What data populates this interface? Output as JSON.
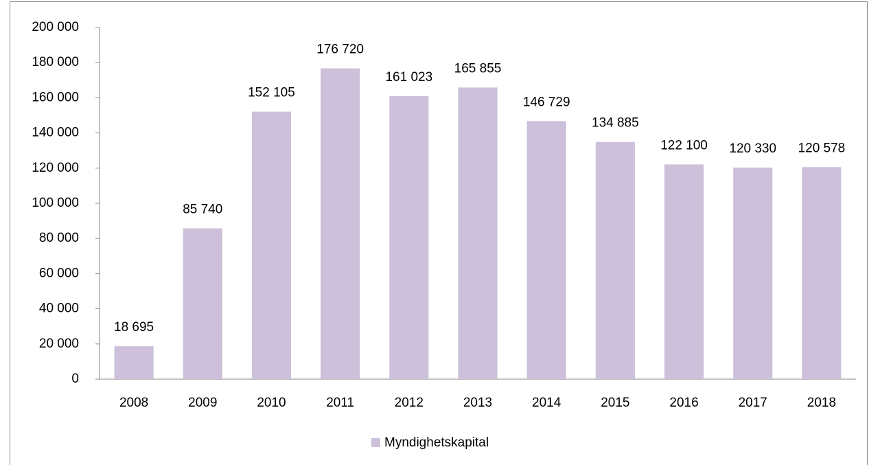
{
  "chart_data": {
    "type": "bar",
    "categories": [
      "2008",
      "2009",
      "2010",
      "2011",
      "2012",
      "2013",
      "2014",
      "2015",
      "2016",
      "2017",
      "2018"
    ],
    "series": [
      {
        "name": "Myndighetskapital",
        "color": "#ccc0da",
        "values": [
          18695,
          85740,
          152105,
          176720,
          161023,
          165855,
          146729,
          134885,
          122100,
          120330,
          120578
        ],
        "value_labels": [
          "18 695",
          "85 740",
          "152 105",
          "176 720",
          "161 023",
          "165 855",
          "146 729",
          "134 885",
          "122 100",
          "120 330",
          "120 578"
        ]
      }
    ],
    "ylim": [
      0,
      200000
    ],
    "yticks": [
      0,
      {
        "value": 20000,
        "label": "20 000"
      },
      {
        "value": 40000,
        "label": "40 000"
      },
      {
        "value": 60000,
        "label": "60 000"
      },
      {
        "value": 80000,
        "label": "80 000"
      },
      {
        "value": 100000,
        "label": "100 000"
      },
      {
        "value": 120000,
        "label": "120 000"
      },
      {
        "value": 140000,
        "label": "140 000"
      },
      {
        "value": 160000,
        "label": "160 000"
      },
      {
        "value": 180000,
        "label": "180 000"
      },
      {
        "value": 200000,
        "label": "200 000"
      }
    ],
    "grid": false,
    "legend": "bottom"
  }
}
